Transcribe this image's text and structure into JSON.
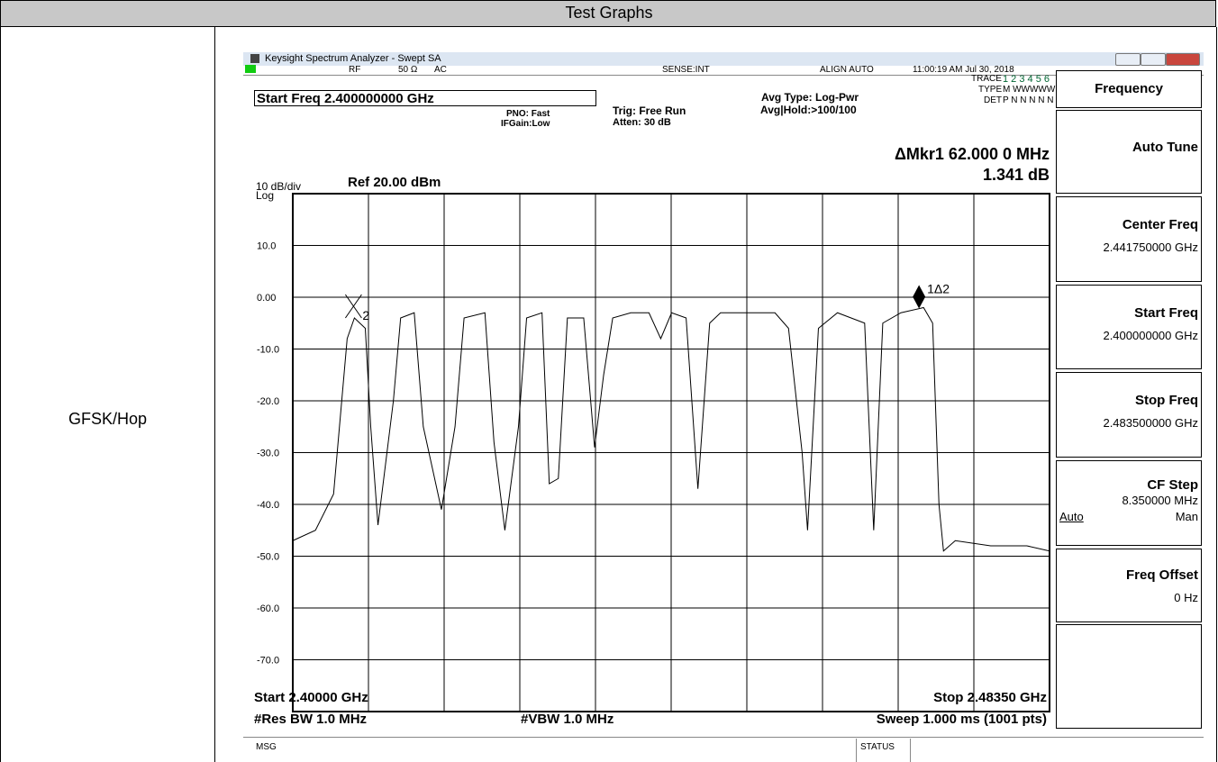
{
  "table": {
    "header": "Test Graphs",
    "row_label": "GFSK/Hop"
  },
  "window": {
    "title": "Keysight Spectrum Analyzer - Swept SA"
  },
  "status_bar": {
    "rf": "RF",
    "impedance": "50 Ω",
    "coupling": "AC",
    "sense": "SENSE:INT",
    "align": "ALIGN AUTO",
    "time": "11:00:19 AM Jul 30, 2018"
  },
  "settings": {
    "start_freq": "Start Freq 2.400000000 GHz",
    "pno": "PNO: Fast",
    "ifgain": "IFGain:Low",
    "trig": "Trig: Free Run",
    "atten": "Atten: 30 dB",
    "avg_type": "Avg Type: Log-Pwr",
    "avg_hold": "Avg|Hold:>100/100",
    "trace_label": "TRACE",
    "trace_nums": "1 2 3 4 5 6",
    "type_label": "TYPE",
    "type_vals": "M WWWWW",
    "det_label": "DET",
    "det_vals": "P N N N N N"
  },
  "readout": {
    "marker": "ΔMkr1 62.000 0 MHz",
    "value": "1.341 dB",
    "scale": "10 dB/div",
    "log": "Log",
    "ref": "Ref 20.00 dBm"
  },
  "footer": {
    "start": "Start 2.40000 GHz",
    "stop": "Stop 2.48350 GHz",
    "rbw": "#Res BW 1.0 MHz",
    "vbw": "#VBW 1.0 MHz",
    "sweep": "Sweep  1.000 ms (1001 pts)",
    "msg": "MSG",
    "status": "STATUS"
  },
  "softkeys": {
    "title": "Frequency",
    "keys": [
      {
        "label": "Auto Tune"
      },
      {
        "label": "Center Freq",
        "value": "2.441750000 GHz"
      },
      {
        "label": "Start Freq",
        "value": "2.400000000 GHz"
      },
      {
        "label": "Stop Freq",
        "value": "2.483500000 GHz"
      },
      {
        "label": "CF Step",
        "value": "8.350000 MHz",
        "auto": "Auto",
        "man": "Man"
      },
      {
        "label": "Freq Offset",
        "value": "0 Hz"
      }
    ]
  },
  "chart_data": {
    "type": "line",
    "xlim": [
      2.4,
      2.4835
    ],
    "ylim": [
      -80,
      20
    ],
    "xticks": [
      2.4,
      2.40835,
      2.4167,
      2.42505,
      2.4334,
      2.44175,
      2.4501,
      2.45845,
      2.4668,
      2.47515,
      2.4835
    ],
    "yticks": [
      {
        "value": 10,
        "label": "10.0"
      },
      {
        "value": 0,
        "label": "0.00"
      },
      {
        "value": -10,
        "label": "-10.0"
      },
      {
        "value": -20,
        "label": "-20.0"
      },
      {
        "value": -30,
        "label": "-30.0"
      },
      {
        "value": -40,
        "label": "-40.0"
      },
      {
        "value": -50,
        "label": "-50.0"
      },
      {
        "value": -60,
        "label": "-60.0"
      },
      {
        "value": -70,
        "label": "-70.0"
      }
    ],
    "color": "#000000",
    "x": [
      2.4,
      2.4025,
      2.4045,
      2.406,
      2.4068,
      2.408,
      2.4086,
      2.4094,
      2.4111,
      2.4119,
      2.4134,
      2.4144,
      2.4164,
      2.4179,
      2.4189,
      2.4212,
      2.4222,
      2.4234,
      2.4249,
      2.4258,
      2.4275,
      2.4283,
      2.4293,
      2.4303,
      2.4321,
      2.4333,
      2.4343,
      2.4353,
      2.4373,
      2.4393,
      2.4406,
      2.4418,
      2.4434,
      2.4447,
      2.446,
      2.4472,
      2.4502,
      2.4532,
      2.4547,
      2.4562,
      2.4568,
      2.458,
      2.4601,
      2.4631,
      2.4641,
      2.4651,
      2.4671,
      2.4696,
      2.4706,
      2.4713,
      2.4718,
      2.4731,
      2.477,
      2.481,
      2.4835
    ],
    "values": [
      -47,
      -45,
      -38,
      -8,
      -4,
      -6,
      -25,
      -44,
      -20,
      -4,
      -3,
      -25,
      -41,
      -25,
      -4,
      -3,
      -28,
      -45,
      -25,
      -4,
      -3,
      -36,
      -35,
      -4,
      -4,
      -29,
      -15,
      -4,
      -3,
      -3,
      -8,
      -3,
      -4,
      -37,
      -5,
      -3,
      -3,
      -3,
      -6,
      -30,
      -45,
      -6,
      -3,
      -5,
      -45,
      -5,
      -3,
      -2,
      -5,
      -40,
      -49,
      -47,
      -48,
      -48,
      -49
    ],
    "markers": [
      {
        "label": "2",
        "x": 2.4068,
        "y": -4
      },
      {
        "label": "1Δ2",
        "x": 2.4691,
        "y": -2
      }
    ]
  }
}
